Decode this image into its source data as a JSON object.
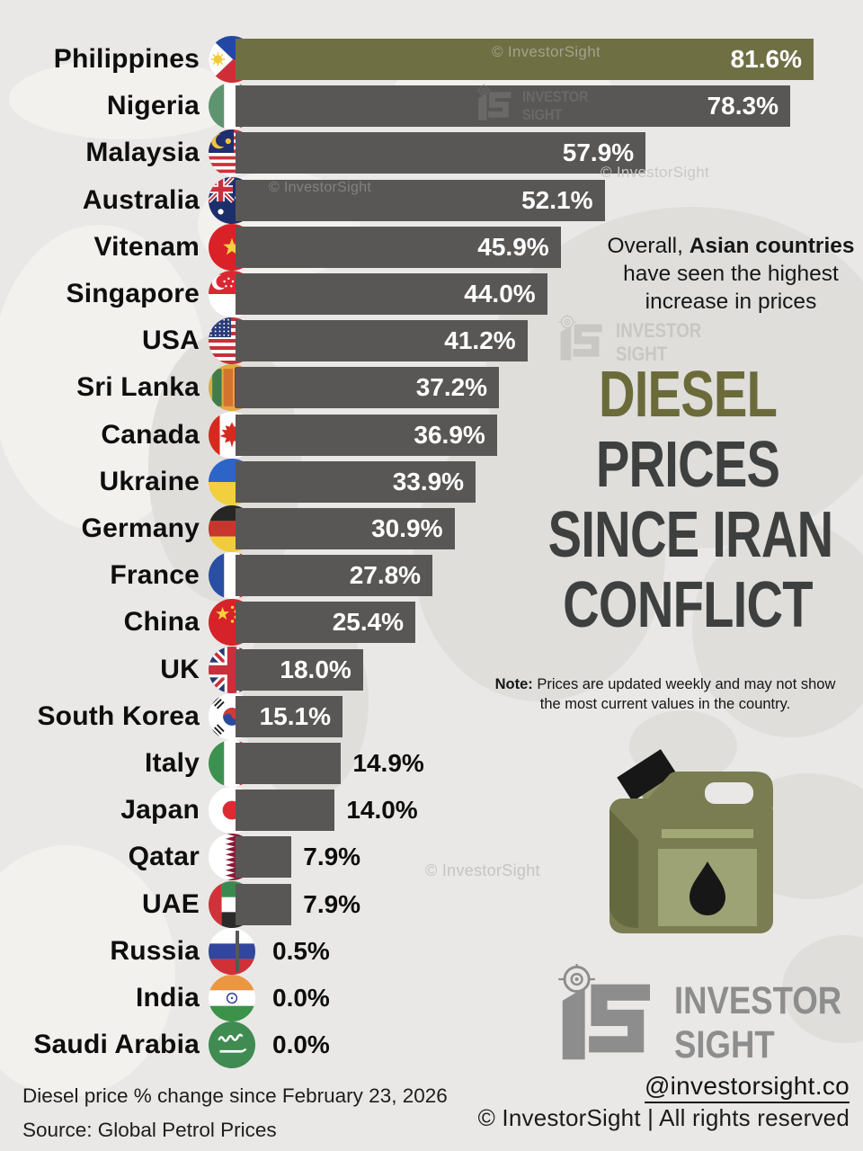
{
  "chart_data": {
    "type": "bar",
    "title": "Diesel Prices Since Iran Conflict",
    "unit": "%",
    "orientation": "horizontal",
    "value_axis_max": 81.6,
    "categories": [
      "Philippines",
      "Nigeria",
      "Malaysia",
      "Australia",
      "Vitenam",
      "Singapore",
      "USA",
      "Sri Lanka",
      "Canada",
      "Ukraine",
      "Germany",
      "France",
      "China",
      "UK",
      "South Korea",
      "Italy",
      "Japan",
      "Qatar",
      "UAE",
      "Russia",
      "India",
      "Saudi Arabia"
    ],
    "values": [
      81.6,
      78.3,
      57.9,
      52.1,
      45.9,
      44.0,
      41.2,
      37.2,
      36.9,
      33.9,
      30.9,
      27.8,
      25.4,
      18.0,
      15.1,
      14.9,
      14.0,
      7.9,
      7.9,
      0.5,
      0.0,
      0.0
    ],
    "rows": [
      {
        "country": "Philippines",
        "value": 81.6,
        "label": "81.6%",
        "flag": "ph",
        "highlight": true
      },
      {
        "country": "Nigeria",
        "value": 78.3,
        "label": "78.3%",
        "flag": "ng",
        "highlight": false
      },
      {
        "country": "Malaysia",
        "value": 57.9,
        "label": "57.9%",
        "flag": "my",
        "highlight": false
      },
      {
        "country": "Australia",
        "value": 52.1,
        "label": "52.1%",
        "flag": "au",
        "highlight": false
      },
      {
        "country": "Vitenam",
        "value": 45.9,
        "label": "45.9%",
        "flag": "vn",
        "highlight": false
      },
      {
        "country": "Singapore",
        "value": 44.0,
        "label": "44.0%",
        "flag": "sg",
        "highlight": false
      },
      {
        "country": "USA",
        "value": 41.2,
        "label": "41.2%",
        "flag": "us",
        "highlight": false
      },
      {
        "country": "Sri Lanka",
        "value": 37.2,
        "label": "37.2%",
        "flag": "lk",
        "highlight": false
      },
      {
        "country": "Canada",
        "value": 36.9,
        "label": "36.9%",
        "flag": "ca",
        "highlight": false
      },
      {
        "country": "Ukraine",
        "value": 33.9,
        "label": "33.9%",
        "flag": "ua",
        "highlight": false
      },
      {
        "country": "Germany",
        "value": 30.9,
        "label": "30.9%",
        "flag": "de",
        "highlight": false
      },
      {
        "country": "France",
        "value": 27.8,
        "label": "27.8%",
        "flag": "fr",
        "highlight": false
      },
      {
        "country": "China",
        "value": 25.4,
        "label": "25.4%",
        "flag": "cn",
        "highlight": false
      },
      {
        "country": "UK",
        "value": 18.0,
        "label": "18.0%",
        "flag": "gb",
        "highlight": false
      },
      {
        "country": "South Korea",
        "value": 15.1,
        "label": "15.1%",
        "flag": "kr",
        "highlight": false
      },
      {
        "country": "Italy",
        "value": 14.9,
        "label": "14.9%",
        "flag": "it",
        "highlight": false
      },
      {
        "country": "Japan",
        "value": 14.0,
        "label": "14.0%",
        "flag": "jp",
        "highlight": false
      },
      {
        "country": "Qatar",
        "value": 7.9,
        "label": "7.9%",
        "flag": "qa",
        "highlight": false
      },
      {
        "country": "UAE",
        "value": 7.9,
        "label": "7.9%",
        "flag": "ae",
        "highlight": false
      },
      {
        "country": "Russia",
        "value": 0.5,
        "label": "0.5%",
        "flag": "ru",
        "highlight": false
      },
      {
        "country": "India",
        "value": 0.0,
        "label": "0.0%",
        "flag": "in",
        "highlight": false
      },
      {
        "country": "Saudi Arabia",
        "value": 0.0,
        "label": "0.0%",
        "flag": "sa",
        "highlight": false
      }
    ]
  },
  "title": {
    "lines": [
      "DIESEL",
      "PRICES",
      "SINCE IRAN",
      "CONFLICT"
    ]
  },
  "annotation": {
    "line1_prefix": "Overall, ",
    "line1_bold": "Asian countries",
    "line2": "have seen the highest",
    "line3": "increase in prices"
  },
  "note": {
    "bold": "Note:",
    "line1_rest": " Prices are updated weekly and may not show",
    "line2": "the most current values in the country."
  },
  "branding": {
    "name_line1": "INVESTOR",
    "name_line2": "SIGHT",
    "handle": "@investorsight.co",
    "rights": "© InvestorSight |  All rights reserved"
  },
  "watermarks": {
    "copyright": "© InvestorSight",
    "logo_line1": "INVESTOR",
    "logo_line2": "SIGHT"
  },
  "footer": {
    "line1": "Diesel price % change since February 23, 2026",
    "line2": "Source: Global Petrol Prices"
  },
  "colors": {
    "background": "#e9e8e6",
    "bar": "#595756",
    "highlight_bar": "#6f6f44",
    "title_accent": "#6b6b3a",
    "title_dark": "#3e403f"
  }
}
